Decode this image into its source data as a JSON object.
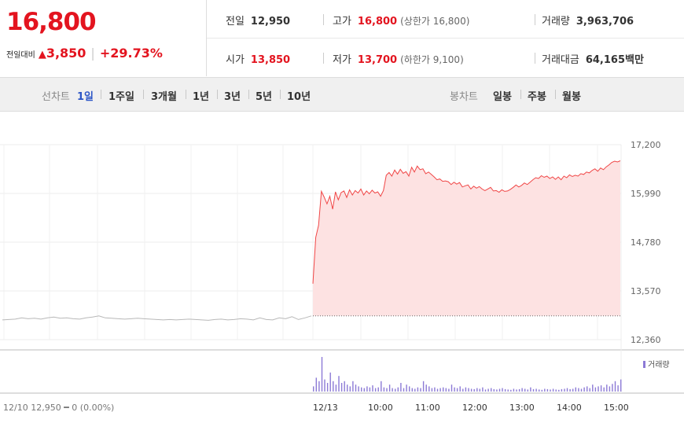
{
  "quote": {
    "price": "16,800",
    "change_label": "전일대비",
    "change_arrow": "▲",
    "change": "3,850",
    "change_pct": "+29.73%",
    "prev_label": "전일",
    "prev": "12,950",
    "high_label": "고가",
    "high": "16,800",
    "upper_limit": "(상한가 16,800)",
    "volume_label": "거래량",
    "volume": "3,963,706",
    "open_label": "시가",
    "open": "13,850",
    "low_label": "저가",
    "low": "13,700",
    "lower_limit": "(하한가 9,100)",
    "amount_label": "거래대금",
    "amount": "64,165",
    "amount_unit": "백만"
  },
  "tabs": {
    "line_label": "선차트",
    "line": [
      "1일",
      "1주일",
      "3개월",
      "1년",
      "3년",
      "5년",
      "10년"
    ],
    "line_active": "1일",
    "candle_label": "봉차트",
    "candle": [
      "일봉",
      "주봉",
      "월봉"
    ]
  },
  "chart_data": {
    "type": "area",
    "yticks": [
      "17,200",
      "15,990",
      "14,780",
      "13,570",
      "12,360"
    ],
    "ylim": [
      12360,
      17200
    ],
    "prev_close": 12950,
    "xlabels": [
      "12/10 12,950 ━ 0 (0.00%)",
      "12/13",
      "10:00",
      "11:00",
      "12:00",
      "13:00",
      "14:00",
      "15:00"
    ],
    "volume_legend": "거래량",
    "prev_day": [
      12850,
      12860,
      12870,
      12900,
      12880,
      12890,
      12870,
      12900,
      12920,
      12890,
      12900,
      12880,
      12870,
      12900,
      12920,
      12950,
      12900,
      12890,
      12880,
      12870,
      12880,
      12890,
      12880,
      12870,
      12860,
      12850,
      12860,
      12850,
      12860,
      12870,
      12860,
      12850,
      12840,
      12860,
      12870,
      12850,
      12860,
      12880,
      12870,
      12850,
      12900,
      12860,
      12850,
      12900,
      12880,
      12930,
      12860,
      12900,
      12950
    ],
    "today": [
      13750,
      14900,
      15200,
      16040,
      15900,
      15730,
      15920,
      15600,
      16030,
      15830,
      16010,
      16050,
      15890,
      16080,
      15950,
      16060,
      16000,
      16100,
      15950,
      16050,
      15980,
      16070,
      16000,
      16030,
      15920,
      16060,
      16440,
      16510,
      16420,
      16570,
      16470,
      16590,
      16490,
      16530,
      16420,
      16640,
      16520,
      16670,
      16580,
      16600,
      16480,
      16520,
      16460,
      16400,
      16330,
      16350,
      16290,
      16300,
      16280,
      16210,
      16270,
      16220,
      16260,
      16150,
      16180,
      16200,
      16100,
      16170,
      16120,
      16160,
      16100,
      16060,
      16100,
      16140,
      16050,
      16060,
      16020,
      16080,
      16040,
      16050,
      16090,
      16140,
      16200,
      16150,
      16190,
      16250,
      16210,
      16270,
      16330,
      16380,
      16360,
      16430,
      16390,
      16420,
      16360,
      16400,
      16340,
      16400,
      16330,
      16420,
      16380,
      16450,
      16410,
      16440,
      16420,
      16480,
      16460,
      16520,
      16500,
      16560,
      16600,
      16540,
      16620,
      16580,
      16650,
      16700,
      16760,
      16790,
      16770,
      16800
    ],
    "volume": [
      0.15,
      0.4,
      0.3,
      1.0,
      0.35,
      0.25,
      0.55,
      0.3,
      0.2,
      0.45,
      0.25,
      0.3,
      0.2,
      0.15,
      0.3,
      0.2,
      0.15,
      0.12,
      0.1,
      0.15,
      0.12,
      0.18,
      0.1,
      0.12,
      0.3,
      0.12,
      0.1,
      0.2,
      0.1,
      0.08,
      0.12,
      0.25,
      0.1,
      0.2,
      0.15,
      0.1,
      0.08,
      0.12,
      0.1,
      0.3,
      0.2,
      0.15,
      0.1,
      0.12,
      0.08,
      0.1,
      0.12,
      0.1,
      0.08,
      0.2,
      0.12,
      0.1,
      0.15,
      0.08,
      0.12,
      0.1,
      0.08,
      0.07,
      0.1,
      0.08,
      0.12,
      0.06,
      0.08,
      0.1,
      0.07,
      0.06,
      0.08,
      0.1,
      0.07,
      0.06,
      0.05,
      0.08,
      0.06,
      0.07,
      0.1,
      0.08,
      0.06,
      0.12,
      0.07,
      0.08,
      0.06,
      0.05,
      0.08,
      0.07,
      0.06,
      0.08,
      0.06,
      0.05,
      0.07,
      0.08,
      0.1,
      0.07,
      0.08,
      0.12,
      0.1,
      0.08,
      0.12,
      0.15,
      0.1,
      0.2,
      0.12,
      0.15,
      0.18,
      0.12,
      0.2,
      0.15,
      0.22,
      0.3,
      0.18,
      0.35
    ]
  }
}
